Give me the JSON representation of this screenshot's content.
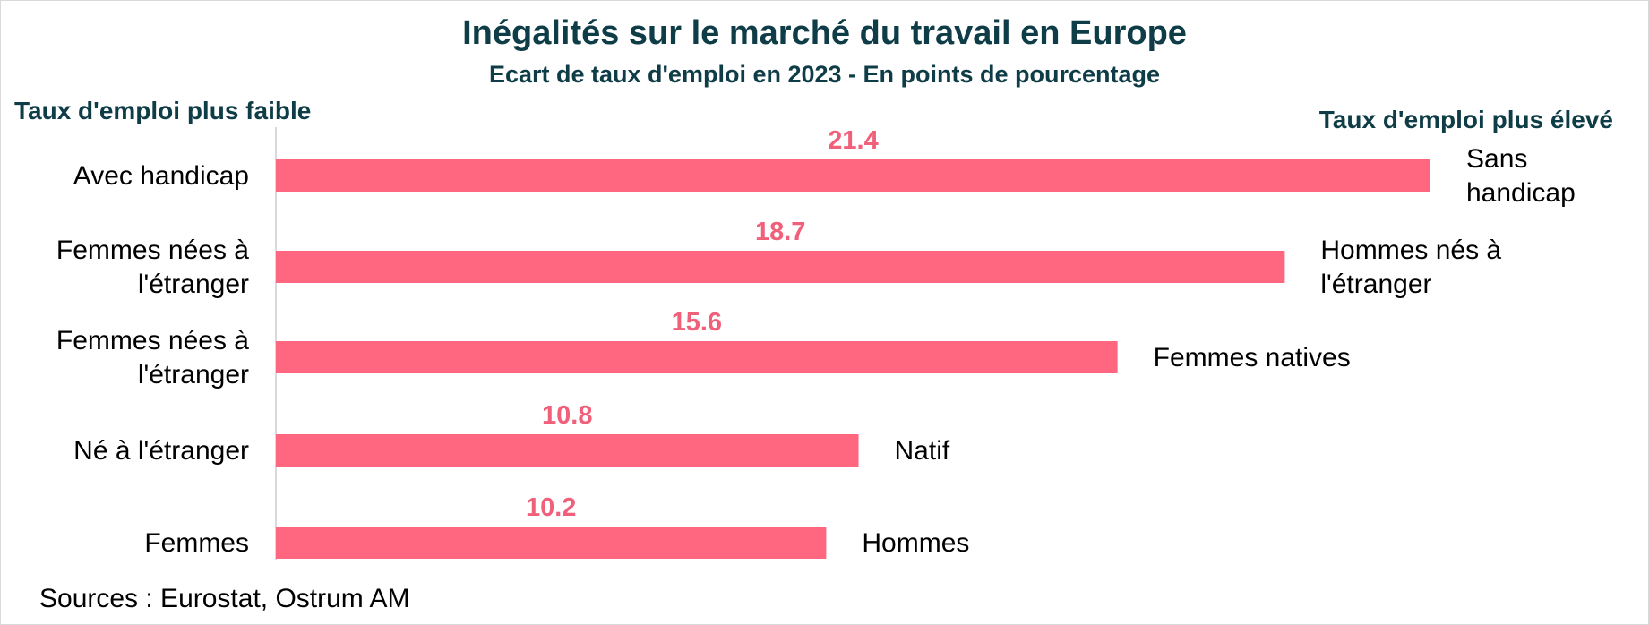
{
  "title": "Inégalités sur le marché du travail en Europe",
  "subtitle": "Ecart de taux d'emploi en 2023 - En points de pourcentage",
  "left_header": "Taux d'emploi plus faible",
  "right_header": "Taux d'emploi plus élevé",
  "source": "Sources : Eurostat, Ostrum AM",
  "colors": {
    "bar": "#ff6680",
    "value_label": "#f0607a",
    "text_dark": "#0f3d47"
  },
  "chart_data": {
    "type": "bar",
    "orientation": "horizontal",
    "categories": [
      "Avec handicap",
      "Femmes nées à l'étranger",
      "Femmes nées à l'étranger",
      "Né à l'étranger",
      "Femmes"
    ],
    "comparison_groups": [
      "Sans handicap",
      "Hommes nés à l'étranger",
      "Femmes natives",
      "Natif",
      "Hommes"
    ],
    "values": [
      21.4,
      18.7,
      15.6,
      10.8,
      10.2
    ],
    "data_labels": [
      "21.4",
      "18.7",
      "15.6",
      "10.8",
      "10.2"
    ],
    "xlim": [
      0,
      21.4
    ],
    "grid": false,
    "legend": "none"
  }
}
